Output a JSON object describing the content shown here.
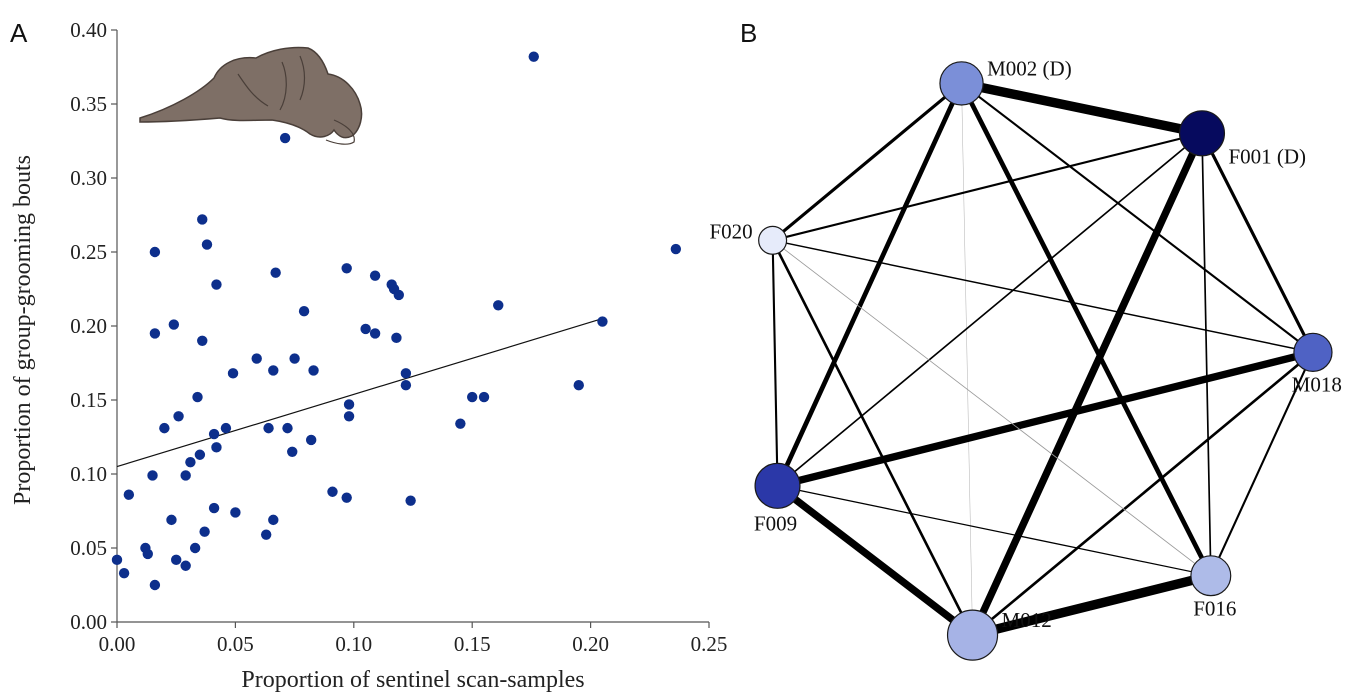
{
  "panels": {
    "a_letter": "A",
    "b_letter": "B"
  },
  "chart_data": [
    {
      "type": "scatter",
      "panel": "A",
      "xlabel": "Proportion of sentinel scan-samples",
      "ylabel": "Proportion of group-grooming bouts",
      "xlim": [
        0,
        0.25
      ],
      "ylim": [
        0,
        0.4
      ],
      "xticks": [
        "0.00",
        "0.05",
        "0.10",
        "0.15",
        "0.20",
        "0.25"
      ],
      "yticks": [
        "0.00",
        "0.05",
        "0.10",
        "0.15",
        "0.20",
        "0.25",
        "0.30",
        "0.35",
        "0.40"
      ],
      "grid": false,
      "point_color": "#0d2f8c",
      "icon": "grooming-meerkats-icon",
      "trendline": {
        "x": [
          0,
          0.205
        ],
        "y": [
          0.105,
          0.205
        ]
      },
      "points": [
        {
          "x": 0.0,
          "y": 0.042
        },
        {
          "x": 0.003,
          "y": 0.033
        },
        {
          "x": 0.005,
          "y": 0.086
        },
        {
          "x": 0.012,
          "y": 0.05
        },
        {
          "x": 0.013,
          "y": 0.046
        },
        {
          "x": 0.015,
          "y": 0.099
        },
        {
          "x": 0.016,
          "y": 0.195
        },
        {
          "x": 0.016,
          "y": 0.25
        },
        {
          "x": 0.016,
          "y": 0.025
        },
        {
          "x": 0.02,
          "y": 0.131
        },
        {
          "x": 0.023,
          "y": 0.069
        },
        {
          "x": 0.024,
          "y": 0.201
        },
        {
          "x": 0.025,
          "y": 0.042
        },
        {
          "x": 0.026,
          "y": 0.139
        },
        {
          "x": 0.029,
          "y": 0.099
        },
        {
          "x": 0.029,
          "y": 0.038
        },
        {
          "x": 0.031,
          "y": 0.108
        },
        {
          "x": 0.033,
          "y": 0.05
        },
        {
          "x": 0.034,
          "y": 0.152
        },
        {
          "x": 0.035,
          "y": 0.113
        },
        {
          "x": 0.036,
          "y": 0.19
        },
        {
          "x": 0.036,
          "y": 0.272
        },
        {
          "x": 0.037,
          "y": 0.061
        },
        {
          "x": 0.038,
          "y": 0.255
        },
        {
          "x": 0.041,
          "y": 0.127
        },
        {
          "x": 0.041,
          "y": 0.077
        },
        {
          "x": 0.042,
          "y": 0.118
        },
        {
          "x": 0.042,
          "y": 0.228
        },
        {
          "x": 0.046,
          "y": 0.131
        },
        {
          "x": 0.049,
          "y": 0.168
        },
        {
          "x": 0.05,
          "y": 0.074
        },
        {
          "x": 0.059,
          "y": 0.178
        },
        {
          "x": 0.063,
          "y": 0.059
        },
        {
          "x": 0.064,
          "y": 0.131
        },
        {
          "x": 0.066,
          "y": 0.069
        },
        {
          "x": 0.066,
          "y": 0.17
        },
        {
          "x": 0.067,
          "y": 0.236
        },
        {
          "x": 0.071,
          "y": 0.327
        },
        {
          "x": 0.072,
          "y": 0.131
        },
        {
          "x": 0.074,
          "y": 0.115
        },
        {
          "x": 0.075,
          "y": 0.178
        },
        {
          "x": 0.079,
          "y": 0.21
        },
        {
          "x": 0.082,
          "y": 0.123
        },
        {
          "x": 0.083,
          "y": 0.17
        },
        {
          "x": 0.091,
          "y": 0.088
        },
        {
          "x": 0.097,
          "y": 0.084
        },
        {
          "x": 0.097,
          "y": 0.239
        },
        {
          "x": 0.098,
          "y": 0.147
        },
        {
          "x": 0.098,
          "y": 0.139
        },
        {
          "x": 0.105,
          "y": 0.198
        },
        {
          "x": 0.109,
          "y": 0.234
        },
        {
          "x": 0.109,
          "y": 0.195
        },
        {
          "x": 0.116,
          "y": 0.228
        },
        {
          "x": 0.117,
          "y": 0.225
        },
        {
          "x": 0.118,
          "y": 0.192
        },
        {
          "x": 0.119,
          "y": 0.221
        },
        {
          "x": 0.122,
          "y": 0.168
        },
        {
          "x": 0.122,
          "y": 0.16
        },
        {
          "x": 0.124,
          "y": 0.082
        },
        {
          "x": 0.145,
          "y": 0.134
        },
        {
          "x": 0.15,
          "y": 0.152
        },
        {
          "x": 0.155,
          "y": 0.152
        },
        {
          "x": 0.161,
          "y": 0.214
        },
        {
          "x": 0.176,
          "y": 0.382
        },
        {
          "x": 0.195,
          "y": 0.16
        },
        {
          "x": 0.205,
          "y": 0.203
        },
        {
          "x": 0.236,
          "y": 0.252
        }
      ]
    },
    {
      "type": "network",
      "panel": "B",
      "nodes": [
        {
          "id": "M002",
          "label": "M002 (D)",
          "color": "#7b8fd8",
          "size": 0.8
        },
        {
          "id": "F001",
          "label": "F001 (D)",
          "color": "#060a5e",
          "size": 0.85
        },
        {
          "id": "M018",
          "label": "M018",
          "color": "#4f62c4",
          "size": 0.65
        },
        {
          "id": "F016",
          "label": "F016",
          "color": "#aebbe8",
          "size": 0.7
        },
        {
          "id": "M012",
          "label": "M012",
          "color": "#a6b3e6",
          "size": 1.0
        },
        {
          "id": "F009",
          "label": "F009",
          "color": "#2b38a8",
          "size": 0.85
        },
        {
          "id": "F020",
          "label": "F020",
          "color": "#e6ebfa",
          "size": 0.35
        }
      ],
      "edges": [
        {
          "source": "M002",
          "target": "F001",
          "weight": 9
        },
        {
          "source": "M002",
          "target": "F020",
          "weight": 3
        },
        {
          "source": "M002",
          "target": "M018",
          "weight": 2
        },
        {
          "source": "M002",
          "target": "F016",
          "weight": 4.5
        },
        {
          "source": "M002",
          "target": "M012",
          "weight": 0.3
        },
        {
          "source": "M002",
          "target": "F009",
          "weight": 4.5
        },
        {
          "source": "F001",
          "target": "F020",
          "weight": 2
        },
        {
          "source": "F001",
          "target": "M018",
          "weight": 3
        },
        {
          "source": "F001",
          "target": "F016",
          "weight": 1.6
        },
        {
          "source": "F001",
          "target": "M012",
          "weight": 7
        },
        {
          "source": "F001",
          "target": "F009",
          "weight": 1.6
        },
        {
          "source": "M018",
          "target": "F020",
          "weight": 1.4
        },
        {
          "source": "M018",
          "target": "F016",
          "weight": 2
        },
        {
          "source": "M018",
          "target": "M012",
          "weight": 2.5
        },
        {
          "source": "M018",
          "target": "F009",
          "weight": 7
        },
        {
          "source": "F016",
          "target": "F020",
          "weight": 0.8
        },
        {
          "source": "F016",
          "target": "M012",
          "weight": 9
        },
        {
          "source": "F016",
          "target": "F009",
          "weight": 1.2
        },
        {
          "source": "M012",
          "target": "F020",
          "weight": 2.5
        },
        {
          "source": "M012",
          "target": "F009",
          "weight": 7
        },
        {
          "source": "F009",
          "target": "F020",
          "weight": 2
        }
      ]
    }
  ]
}
